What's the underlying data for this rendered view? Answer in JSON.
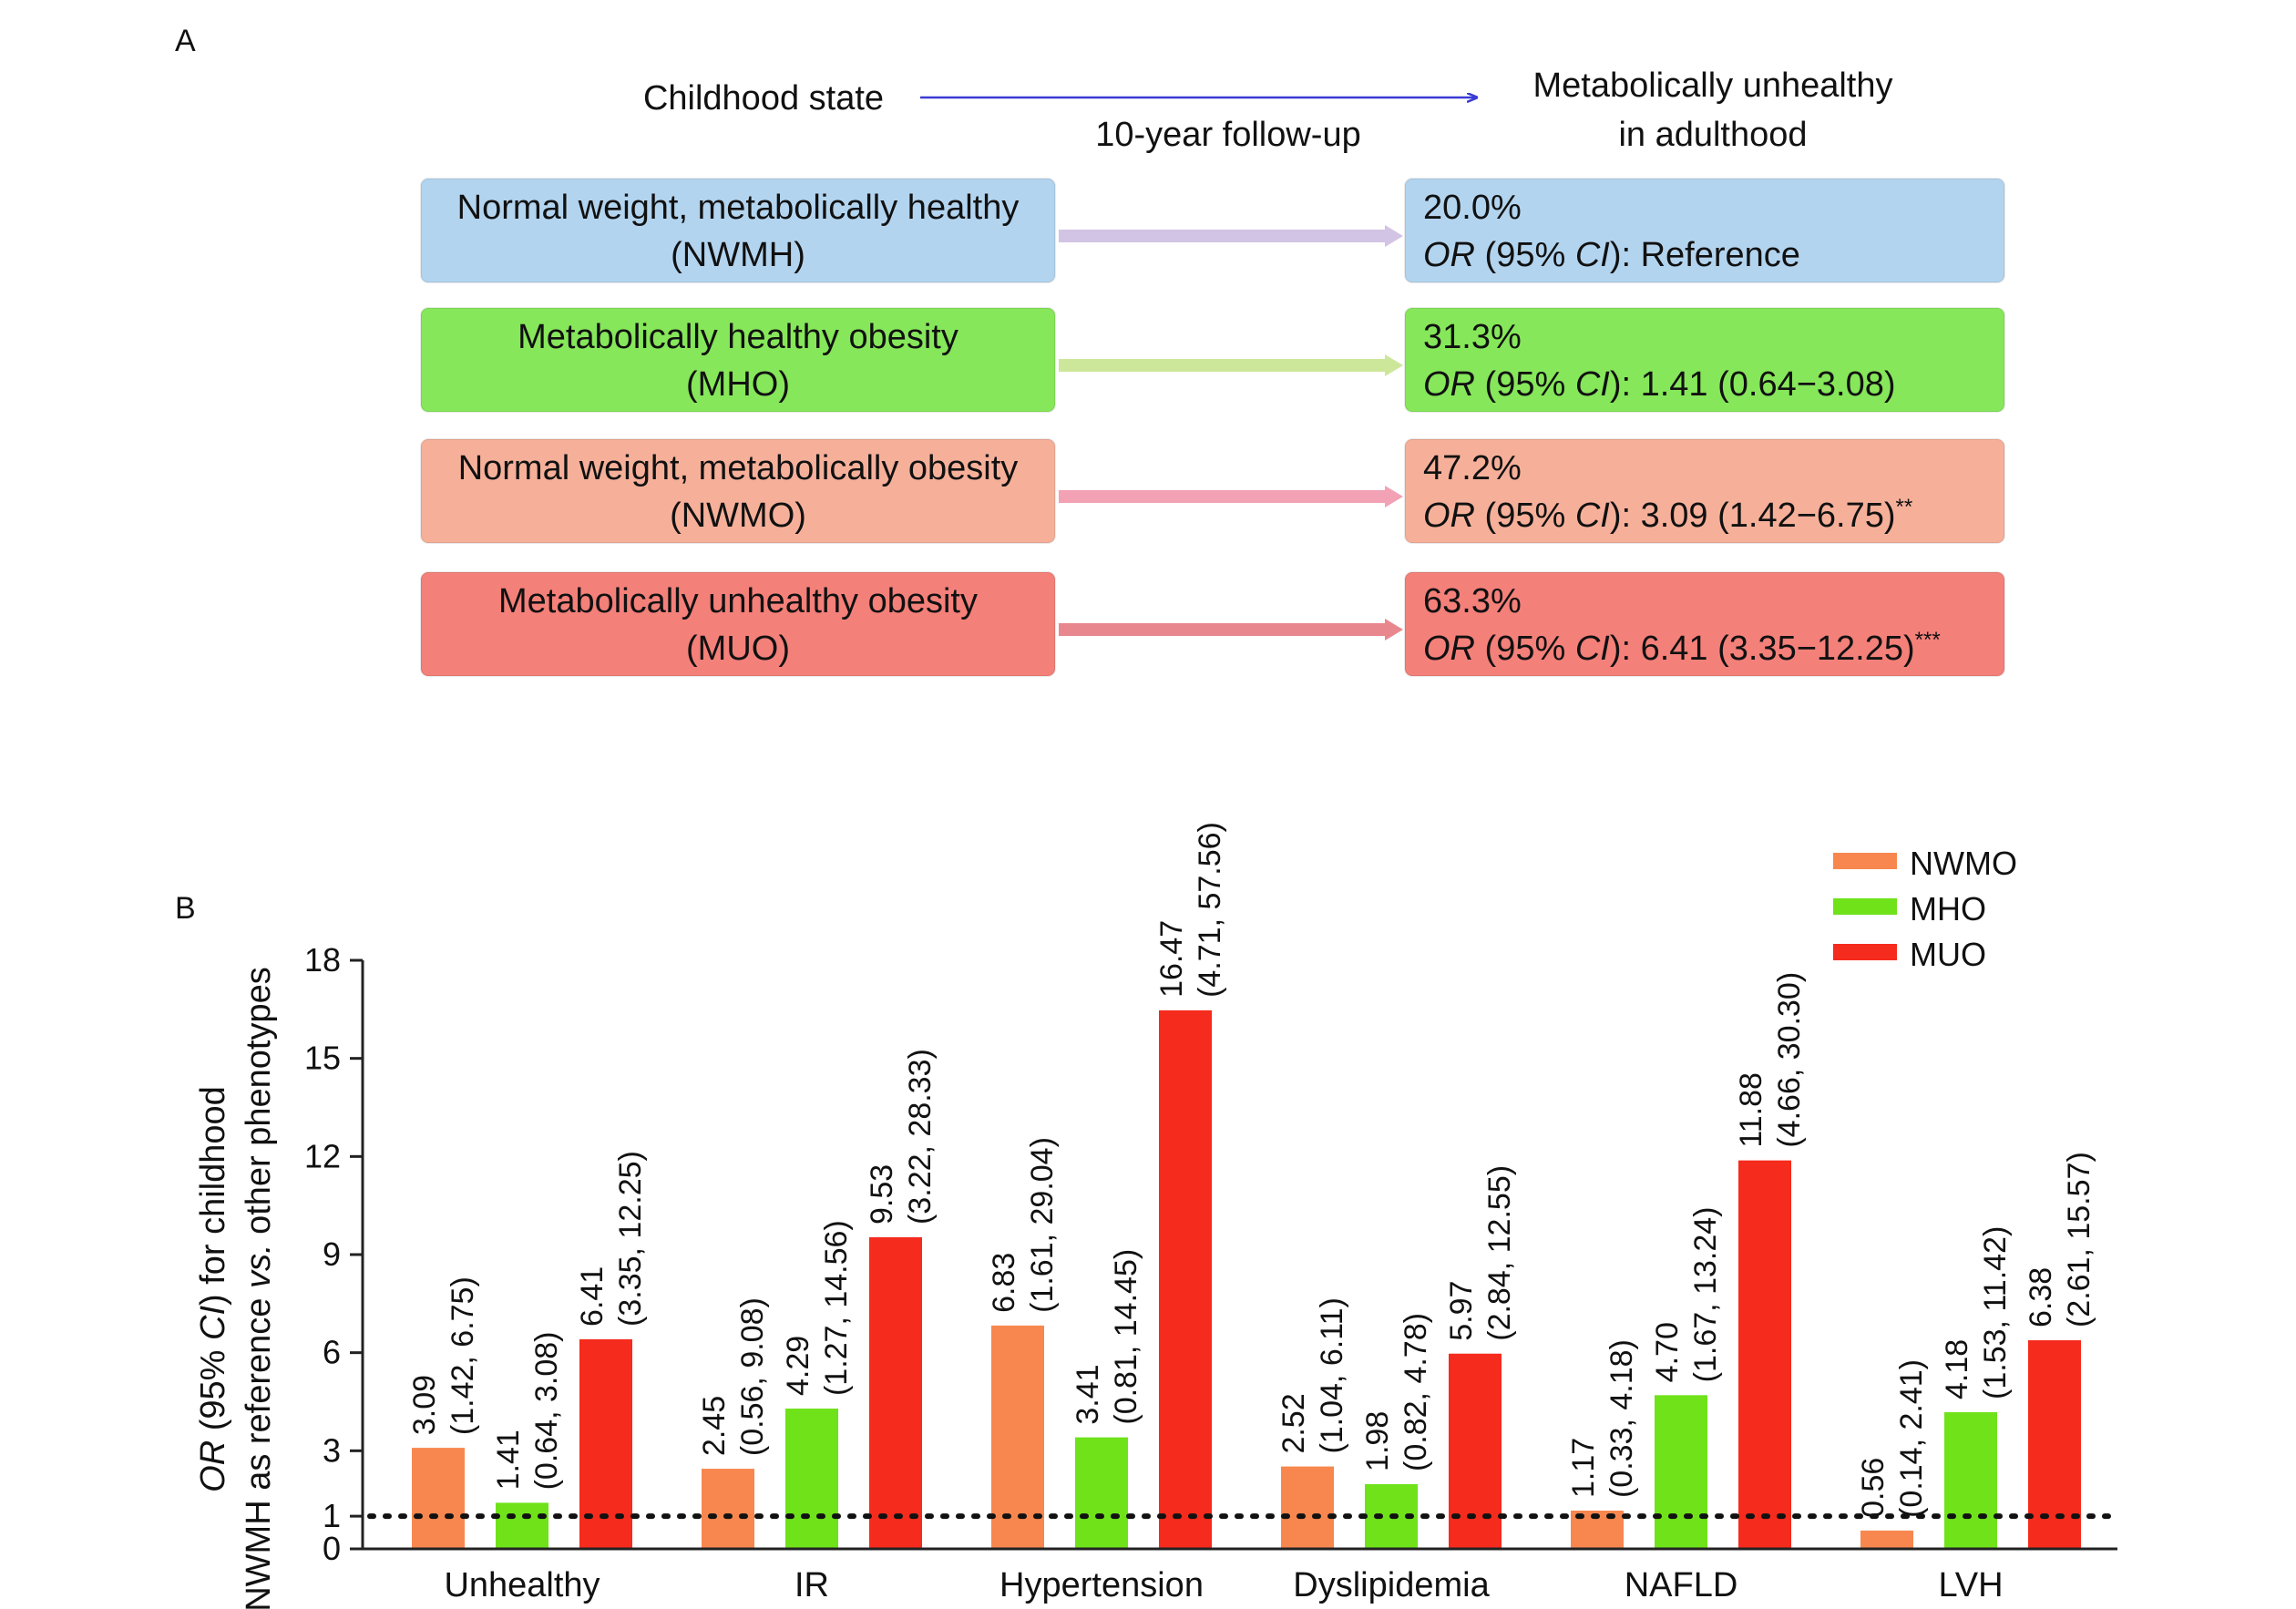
{
  "panelA": {
    "letter": "A",
    "left_header": "Childhood state",
    "middle_header": "10-year follow-up",
    "right_header_line1": "Metabolically unhealthy",
    "right_header_line2": "in adulthood",
    "colors": {
      "arrow_header": "#3a3ad6"
    },
    "rows": [
      {
        "left_line1": "Normal weight, metabolically healthy",
        "left_line2": "(NWMH)",
        "right_pct": "20.0%",
        "or_prefix": "OR",
        "or_mid": " (95% ",
        "or_ci": "CI",
        "or_value": "): Reference",
        "sig": "",
        "fill": "#b3d4ef",
        "arrow": "#d2c4e4"
      },
      {
        "left_line1": "Metabolically healthy obesity",
        "left_line2": "(MHO)",
        "right_pct": "31.3%",
        "or_prefix": "OR",
        "or_mid": " (95% ",
        "or_ci": "CI",
        "or_value": "): 1.41 (0.64−3.08)",
        "sig": "",
        "fill": "#86e75a",
        "arrow": "#cde79a"
      },
      {
        "left_line1": "Normal weight, metabolically obesity",
        "left_line2": "(NWMO)",
        "right_pct": "47.2%",
        "or_prefix": "OR",
        "or_mid": " (95% ",
        "or_ci": "CI",
        "or_value": "): 3.09 (1.42−6.75)",
        "sig": "**",
        "fill": "#f6b09a",
        "arrow": "#f2a2b4"
      },
      {
        "left_line1": "Metabolically unhealthy obesity",
        "left_line2": "(MUO)",
        "right_pct": "63.3%",
        "or_prefix": "OR",
        "or_mid": " (95% ",
        "or_ci": "CI",
        "or_value": "): 6.41 (3.35−12.25)",
        "sig": "***",
        "fill": "#f4807a",
        "arrow": "#e8888e"
      }
    ]
  },
  "chart_data": {
    "type": "bar",
    "panel_letter": "B",
    "ylabel_parts": [
      "OR",
      " (95% ",
      "CI",
      ") for childhood"
    ],
    "ylabel_line2_parts": [
      "NWMH as reference ",
      "vs.",
      " other phenotypes"
    ],
    "ylim": [
      0,
      18
    ],
    "yticks": [
      0,
      1,
      3,
      6,
      9,
      12,
      15,
      18
    ],
    "reference_line": 1,
    "categories": [
      "Unhealthy",
      "IR",
      "Hypertension",
      "Dyslipidemia",
      "NAFLD",
      "LVH"
    ],
    "series": [
      {
        "name": "NWMO",
        "color": "#f7874f",
        "values": [
          3.09,
          2.45,
          6.83,
          2.52,
          1.17,
          0.56
        ],
        "ci": [
          "(1.42, 6.75)",
          "(0.56, 9.08)",
          "(1.61, 29.04)",
          "(1.04, 6.11)",
          "(0.33, 4.18)",
          "(0.14, 2.41)"
        ],
        "value_labels": [
          "3.09",
          "2.45",
          "6.83",
          "2.52",
          "1.17",
          "0.56"
        ]
      },
      {
        "name": "MHO",
        "color": "#6fe21a",
        "values": [
          1.41,
          4.29,
          3.41,
          1.98,
          4.7,
          4.18
        ],
        "ci": [
          "(0.64, 3.08)",
          "(1.27, 14.56)",
          "(0.81, 14.45)",
          "(0.82, 4.78)",
          "(1.67, 13.24)",
          "(1.53, 11.42)"
        ],
        "value_labels": [
          "1.41",
          "4.29",
          "3.41",
          "1.98",
          "4.70",
          "4.18"
        ]
      },
      {
        "name": "MUO",
        "color": "#f52b1d",
        "values": [
          6.41,
          9.53,
          16.47,
          5.97,
          11.88,
          6.38
        ],
        "ci": [
          "(3.35, 12.25)",
          "(3.22, 28.33)",
          "(4.71, 57.56)",
          "(2.84, 12.55)",
          "(4.66, 30.30)",
          "(2.61, 15.57)"
        ],
        "value_labels": [
          "6.41",
          "9.53",
          "16.47",
          "5.97",
          "11.88",
          "6.38"
        ]
      }
    ],
    "legend_position": "top-right",
    "grid": false
  }
}
